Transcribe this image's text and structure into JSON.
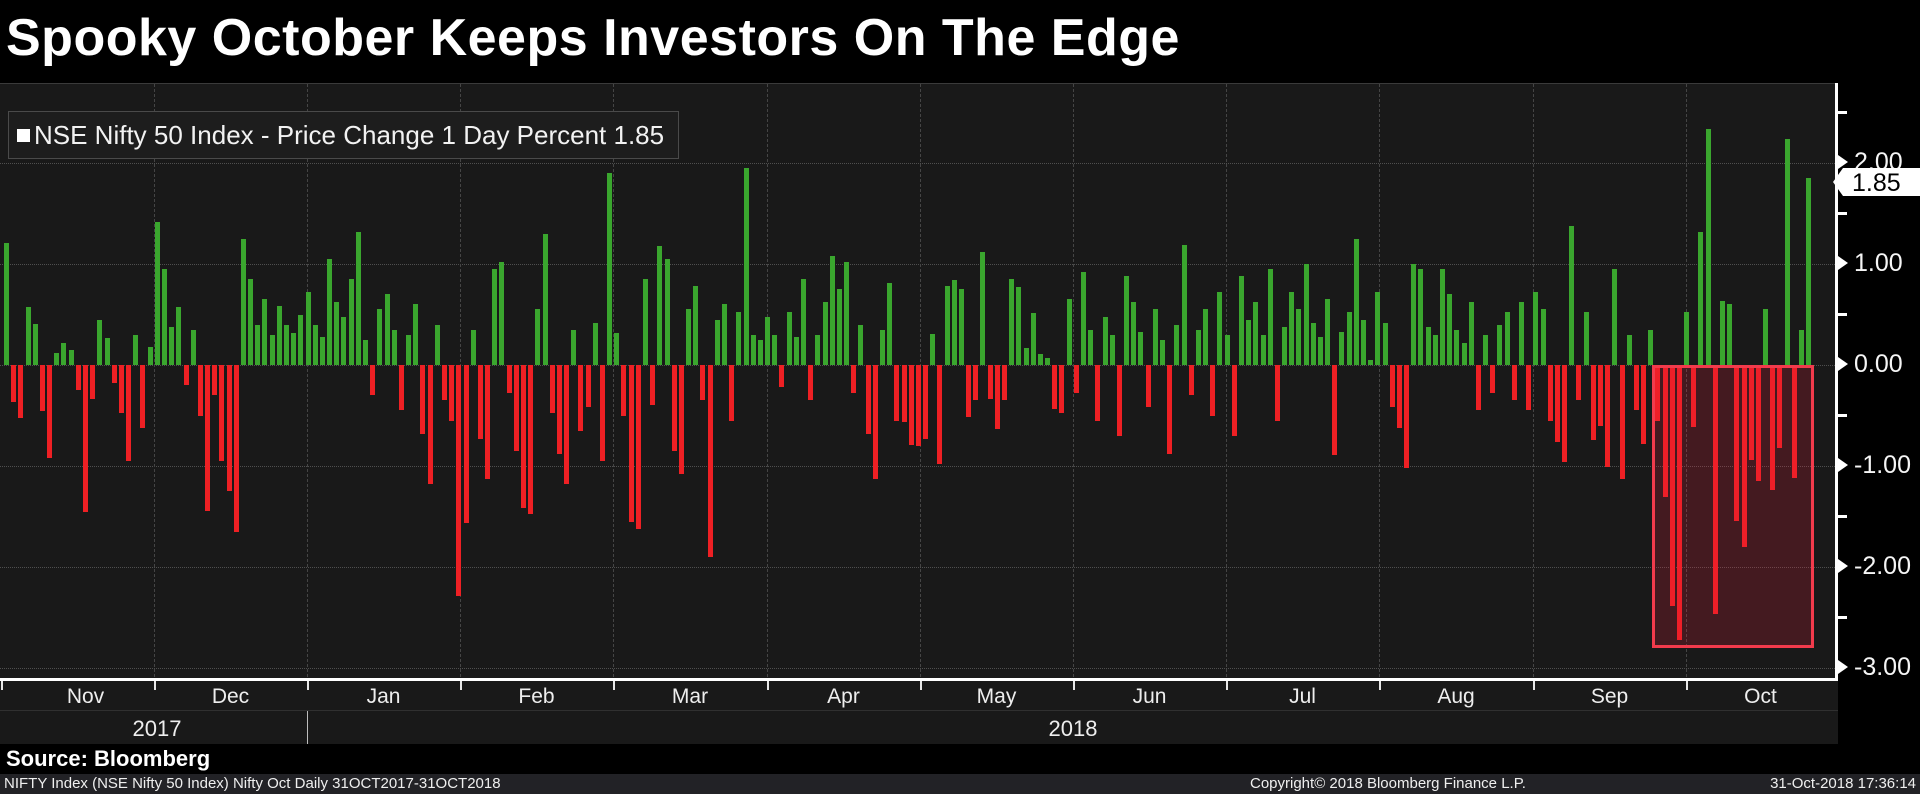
{
  "window": {
    "title": "Spooky October Keeps Investors On The Edge"
  },
  "legend": {
    "text": "NSE Nifty 50 Index - Price Change 1 Day Percent 1.85"
  },
  "y_axis": {
    "tick_labels": [
      "2.00",
      "1.00",
      "0.00",
      "-1.00",
      "-2.00",
      "-3.00"
    ],
    "tick_values": [
      2,
      1,
      0,
      -1,
      -2,
      -3
    ],
    "minor_tick_values": [
      2.5,
      1.5,
      0.5,
      -0.5,
      -1.5,
      -2.5
    ],
    "last_price_badge": "1.85"
  },
  "x_axis": {
    "month_labels": [
      "Nov",
      "Dec",
      "Jan",
      "Feb",
      "Mar",
      "Apr",
      "May",
      "Jun",
      "Jul",
      "Aug",
      "Sep",
      "Oct"
    ],
    "year_labels": [
      "2017",
      "2018"
    ]
  },
  "source_line": "Source: Bloomberg",
  "status_bar": {
    "left": "NIFTY Index (NSE Nifty 50 Index) Nifty Oct  Daily 31OCT2017-31OCT2018",
    "center": "Copyright© 2018 Bloomberg Finance L.P.",
    "right": "31-Oct-2018 17:36:14"
  },
  "colors": {
    "up_bar": "#3aa62e",
    "down_bar": "#ee2024",
    "highlight_border": "#f23b4c",
    "highlight_fill": "rgba(238,32,60,0.20)",
    "badge_bg": "#ffffff",
    "badge_text": "#000000"
  },
  "chart_data": {
    "type": "bar",
    "title": "Spooky October Keeps Investors On The Edge",
    "xlabel": "",
    "ylabel": "Price Change 1 Day Percent",
    "x_range": [
      "31OCT2017",
      "31OCT2018"
    ],
    "x_tick_labels": [
      "Nov",
      "Dec",
      "Jan",
      "Feb",
      "Mar",
      "Apr",
      "May",
      "Jun",
      "Jul",
      "Aug",
      "Sep",
      "Oct"
    ],
    "ylim": [
      -3.2,
      2.8
    ],
    "y_ticks": [
      2,
      1,
      0,
      -1,
      -2,
      -3
    ],
    "grid": true,
    "legend_position": "top-left",
    "last_value": 1.85,
    "highlight_region": {
      "x_start_frac": 0.9005,
      "x_end_frac": 0.9885,
      "y_top_value": 0,
      "y_bottom_value": -2.8,
      "meaning": "October 2018 sell-off window"
    },
    "series": [
      {
        "name": "NSE Nifty 50 Index - Price Change 1 Day Percent",
        "values": [
          1.21,
          -0.37,
          -0.52,
          0.57,
          0.41,
          -0.46,
          -0.92,
          0.12,
          0.22,
          0.15,
          -0.25,
          -1.46,
          -0.34,
          0.45,
          0.27,
          -0.18,
          -0.48,
          -0.95,
          0.3,
          -0.62,
          0.18,
          1.42,
          0.95,
          0.38,
          0.57,
          -0.2,
          0.35,
          -0.5,
          -1.45,
          -0.3,
          -0.95,
          -1.25,
          -1.65,
          1.25,
          0.85,
          0.4,
          0.65,
          0.3,
          0.58,
          0.4,
          0.32,
          0.5,
          0.72,
          0.4,
          0.28,
          1.05,
          0.62,
          0.48,
          0.85,
          1.32,
          0.25,
          -0.3,
          0.55,
          0.7,
          0.35,
          -0.45,
          0.3,
          0.6,
          -0.68,
          -1.18,
          0.4,
          -0.35,
          -0.55,
          -2.29,
          -1.56,
          0.35,
          -0.73,
          -1.13,
          0.95,
          1.02,
          -0.28,
          -0.85,
          -1.42,
          -1.48,
          0.55,
          1.3,
          -0.48,
          -0.88,
          -1.18,
          0.35,
          -0.65,
          -0.42,
          0.42,
          -0.95,
          1.9,
          0.32,
          -0.5,
          -1.55,
          -1.62,
          0.85,
          -0.4,
          1.18,
          1.05,
          -0.85,
          -1.08,
          0.55,
          0.78,
          -0.35,
          -1.9,
          0.45,
          0.6,
          -0.55,
          0.52,
          1.95,
          0.3,
          0.25,
          0.48,
          0.3,
          -0.22,
          0.52,
          0.28,
          0.85,
          -0.35,
          0.3,
          0.62,
          1.08,
          0.75,
          1.02,
          -0.28,
          0.4,
          -0.68,
          -1.13,
          0.35,
          0.81,
          -0.55,
          -0.56,
          -0.79,
          -0.8,
          -0.73,
          0.31,
          -0.98,
          0.78,
          0.84,
          0.75,
          -0.51,
          -0.35,
          1.12,
          -0.34,
          -0.63,
          -0.35,
          0.85,
          0.77,
          0.17,
          0.51,
          0.11,
          0.07,
          -0.44,
          -0.48,
          0.65,
          -0.28,
          0.92,
          0.35,
          -0.55,
          0.48,
          0.3,
          -0.7,
          0.88,
          0.62,
          0.33,
          -0.42,
          0.55,
          0.25,
          -0.88,
          0.4,
          1.19,
          -0.3,
          0.35,
          0.55,
          -0.5,
          0.72,
          0.3,
          -0.7,
          0.88,
          0.45,
          0.62,
          0.3,
          0.95,
          -0.55,
          0.38,
          0.72,
          0.55,
          1.0,
          0.42,
          0.28,
          0.65,
          -0.89,
          0.33,
          0.52,
          1.25,
          0.45,
          0.05,
          0.72,
          0.42,
          -0.42,
          -0.62,
          -1.02,
          1.0,
          0.95,
          0.38,
          0.3,
          0.95,
          0.7,
          0.35,
          0.22,
          0.62,
          -0.45,
          0.3,
          -0.28,
          0.4,
          0.52,
          -0.35,
          0.62,
          -0.45,
          0.72,
          0.55,
          -0.55,
          -0.76,
          -0.96,
          1.38,
          -0.35,
          0.52,
          -0.74,
          -0.6,
          -1.01,
          0.95,
          -1.13,
          0.3,
          -0.45,
          -0.78,
          0.35,
          -0.55,
          -1.31,
          -2.39,
          -2.72,
          0.52,
          -0.61,
          1.32,
          2.34,
          -2.47,
          0.63,
          0.6,
          -1.54,
          -1.8,
          -0.94,
          -1.15,
          0.55,
          -1.24,
          -0.82,
          2.24,
          -1.12,
          0.35,
          1.85
        ]
      }
    ]
  }
}
